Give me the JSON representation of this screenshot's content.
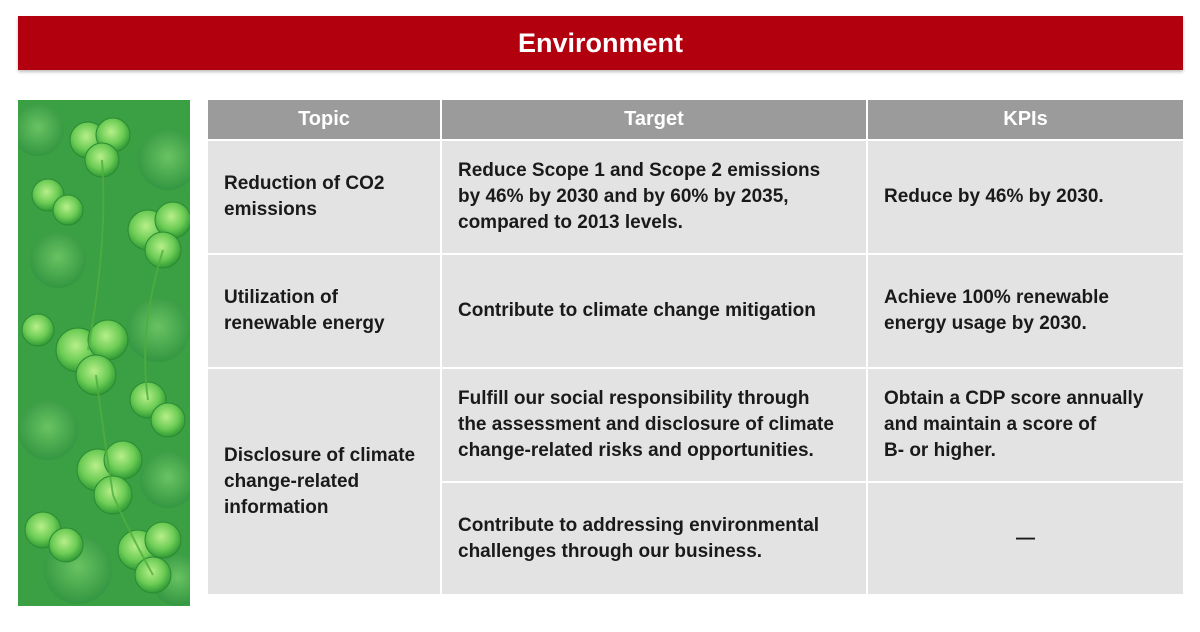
{
  "banner": {
    "title": "Environment"
  },
  "image": {
    "description_icon": "clover-leaves-photo"
  },
  "table": {
    "headers": {
      "topic": "Topic",
      "target": "Target",
      "kpis": "KPIs"
    },
    "rows": [
      {
        "topic": "Reduction of CO2\nemissions",
        "target": "Reduce Scope 1 and Scope 2 emissions\nby 46% by 2030 and by 60% by 2035,\ncompared to 2013 levels.",
        "kpi": "Reduce by 46% by 2030."
      },
      {
        "topic": "Utilization of\nrenewable energy",
        "target": "Contribute to climate change mitigation",
        "kpi": "Achieve 100% renewable\nenergy usage by 2030."
      },
      {
        "topic": "Disclosure of climate\nchange-related\ninformation",
        "target": "Fulfill our social responsibility through\nthe assessment and disclosure of climate\nchange-related risks and opportunities.",
        "kpi": "Obtain a CDP score annually\nand maintain a score of\nB- or higher."
      },
      {
        "target": "Contribute to addressing environmental\nchallenges through our business.",
        "kpi": "—"
      }
    ]
  }
}
